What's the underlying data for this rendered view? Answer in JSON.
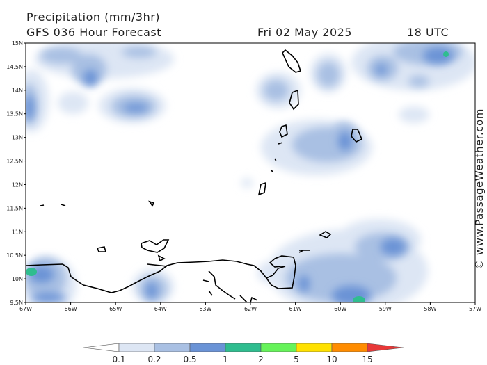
{
  "header": {
    "title": "Precipitation (mm/3hr)",
    "subtitle": "GFS 036 Hour Forecast",
    "date": "Fri 02 May 2025",
    "time": "18 UTC"
  },
  "credit": "© www.PassageWeather.com",
  "axes": {
    "lat_labels": [
      "15N",
      "14.5N",
      "14N",
      "13.5N",
      "13N",
      "12.5N",
      "12N",
      "11.5N",
      "11N",
      "10.5N",
      "10N",
      "9.5N"
    ],
    "lon_labels": [
      "67W",
      "66W",
      "65W",
      "64W",
      "63W",
      "62W",
      "61W",
      "60W",
      "59W",
      "58W",
      "57W"
    ]
  },
  "colorbar": {
    "levels": [
      "0.1",
      "0.2",
      "0.5",
      "1",
      "2",
      "5",
      "10",
      "15"
    ],
    "colors": [
      "#ffffff",
      "#dde6f4",
      "#a9c0e3",
      "#6a93d6",
      "#2fbd8f",
      "#66f35a",
      "#ffe100",
      "#ff8c00",
      "#e83838"
    ]
  }
}
